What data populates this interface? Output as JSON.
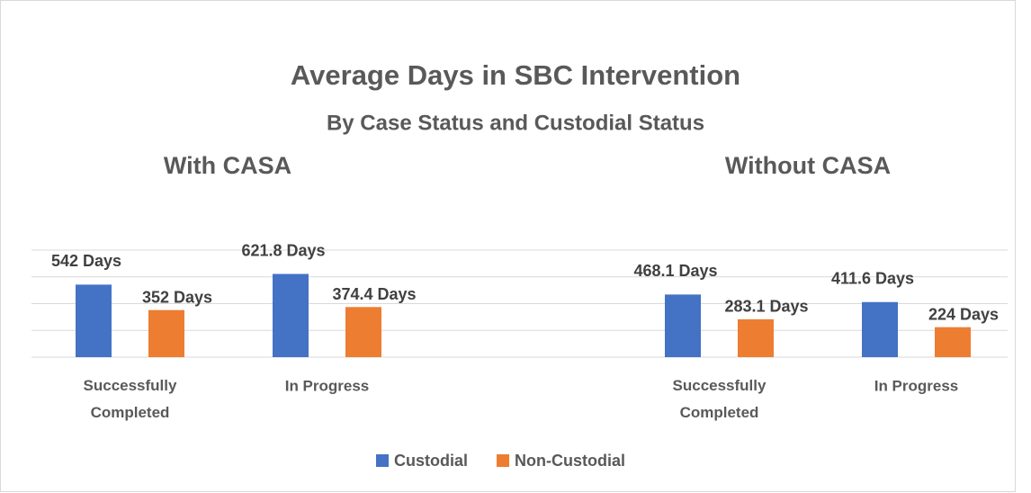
{
  "title": "Average Days in SBC Intervention",
  "subtitle": "By Case Status and Custodial Status",
  "chart_data": [
    {
      "type": "bar",
      "title": "With CASA",
      "categories": [
        "Successfully Completed",
        "In Progress"
      ],
      "series": [
        {
          "name": "Custodial",
          "color": "#4472c4",
          "values": [
            542,
            621.8
          ],
          "value_labels": [
            "542 Days",
            "621.8 Days"
          ]
        },
        {
          "name": "Non-Custodial",
          "color": "#ed7d31",
          "values": [
            352,
            374.4
          ],
          "value_labels": [
            "352 Days",
            "374.4 Days"
          ]
        }
      ],
      "ylim": [
        0,
        800
      ],
      "yticks": [
        0,
        200,
        400,
        600,
        800
      ],
      "grid": true
    },
    {
      "type": "bar",
      "title": "Without CASA",
      "categories": [
        "Successfully Completed",
        "In Progress"
      ],
      "series": [
        {
          "name": "Custodial",
          "color": "#4472c4",
          "values": [
            468.1,
            411.6
          ],
          "value_labels": [
            "468.1 Days",
            "411.6 Days"
          ]
        },
        {
          "name": "Non-Custodial",
          "color": "#ed7d31",
          "values": [
            283.1,
            224
          ],
          "value_labels": [
            "283.1 Days",
            "224 Days"
          ]
        }
      ],
      "ylim": [
        0,
        800
      ],
      "yticks": [
        0,
        200,
        400,
        600,
        800
      ],
      "grid": true
    }
  ]
}
